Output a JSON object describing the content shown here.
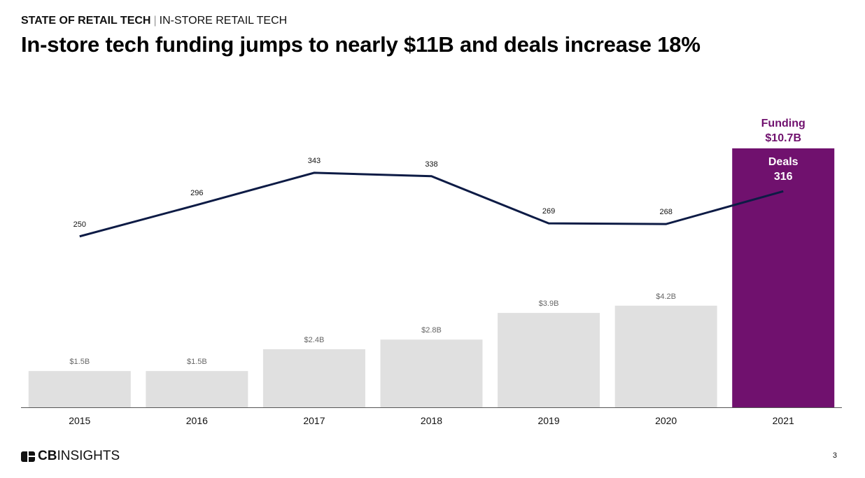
{
  "header": {
    "section": "STATE OF RETAIL TECH",
    "subsection": "IN-STORE RETAIL TECH",
    "title": "In-store tech funding jumps to nearly $11B and deals increase 18%"
  },
  "chart_data": {
    "type": "bar+line",
    "categories": [
      "2015",
      "2016",
      "2017",
      "2018",
      "2019",
      "2020",
      "2021"
    ],
    "series": [
      {
        "name": "Funding",
        "type": "bar",
        "unit": "$B",
        "values": [
          1.5,
          1.5,
          2.4,
          2.8,
          3.9,
          4.2,
          10.7
        ],
        "labels": [
          "$1.5B",
          "$1.5B",
          "$2.4B",
          "$2.8B",
          "$3.9B",
          "$4.2B",
          "$10.7B"
        ]
      },
      {
        "name": "Deals",
        "type": "line",
        "values": [
          250,
          296,
          343,
          338,
          269,
          268,
          316
        ]
      }
    ],
    "colors": {
      "bar": "#e0e0e0",
      "highlight_bar": "#70116e",
      "line": "#0d1b45",
      "bar_label": "#666666"
    },
    "annotations": {
      "funding_label": "Funding",
      "funding_value": "$10.7B",
      "deals_label": "Deals",
      "deals_value": "316"
    },
    "grid": false,
    "legend": "none"
  },
  "footer": {
    "logo_text": "CBINSIGHTS",
    "page": "3"
  }
}
